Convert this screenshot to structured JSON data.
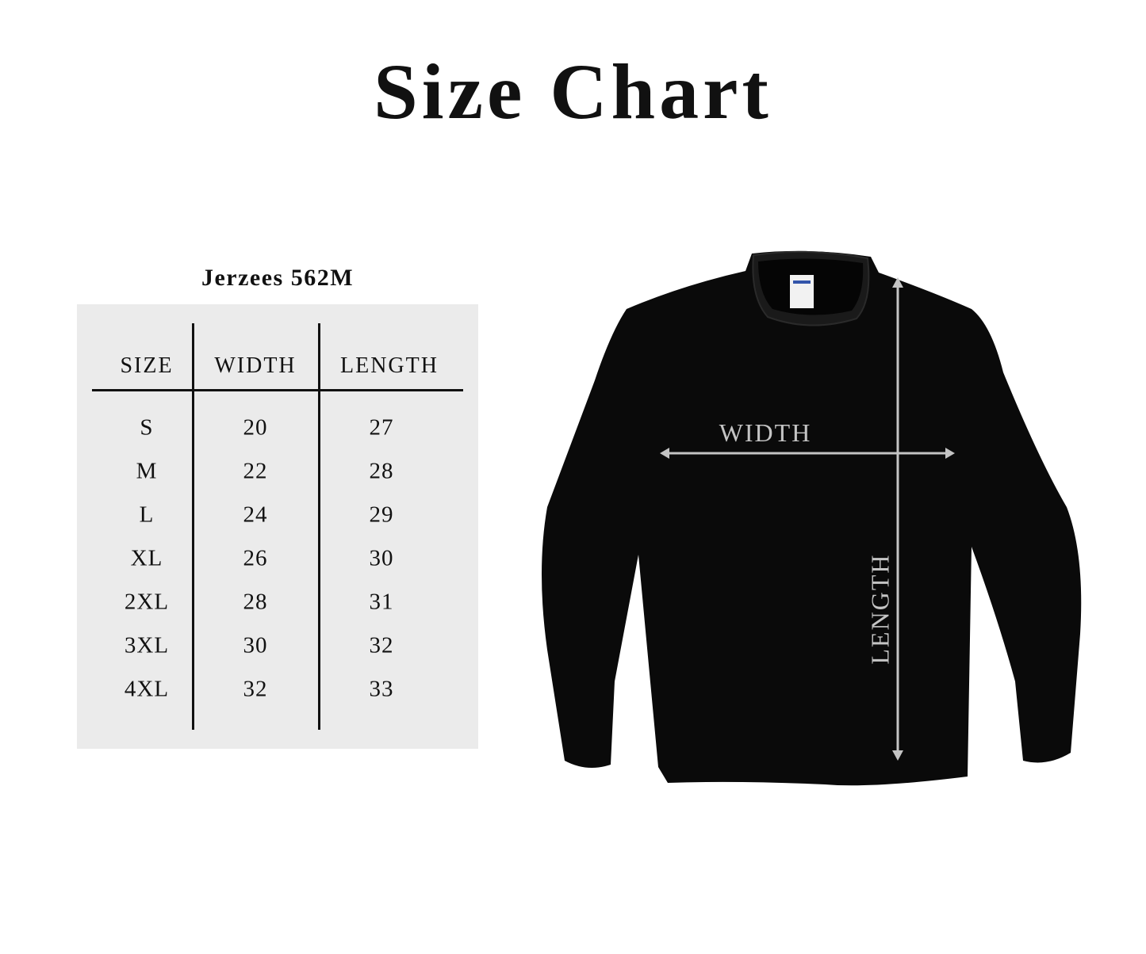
{
  "title": "Size Chart",
  "model": "Jerzees 562M",
  "table": {
    "headers": [
      "SIZE",
      "WIDTH",
      "LENGTH"
    ],
    "rows": [
      [
        "S",
        "20",
        "27"
      ],
      [
        "M",
        "22",
        "28"
      ],
      [
        "L",
        "24",
        "29"
      ],
      [
        "XL",
        "26",
        "30"
      ],
      [
        "2XL",
        "28",
        "31"
      ],
      [
        "3XL",
        "30",
        "32"
      ],
      [
        "4XL",
        "32",
        "33"
      ]
    ]
  },
  "diagram": {
    "width_label": "WIDTH",
    "length_label": "LENGTH",
    "garment_color": "#0a0a0a",
    "arrow_color": "#c4c4c4"
  }
}
